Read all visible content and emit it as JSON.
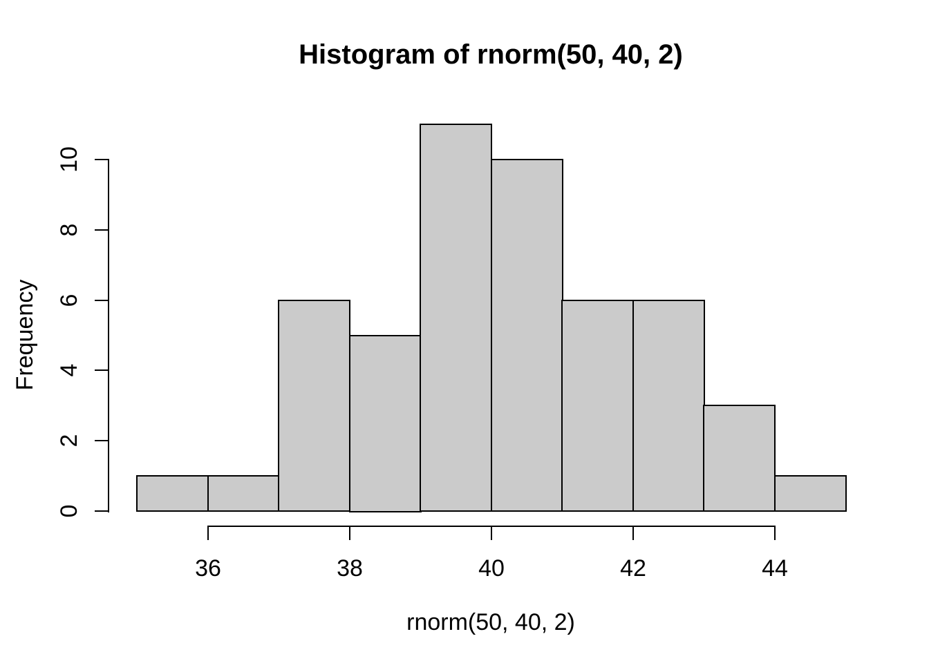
{
  "chart_data": {
    "type": "bar",
    "subtype": "histogram",
    "title": "Histogram of rnorm(50, 40, 2)",
    "xlabel": "rnorm(50, 40, 2)",
    "ylabel": "Frequency",
    "bin_edges": [
      35,
      36,
      37,
      38,
      39,
      40,
      41,
      42,
      43,
      44,
      45
    ],
    "counts": [
      1,
      1,
      6,
      5,
      11,
      10,
      6,
      6,
      3,
      1
    ],
    "x_ticks": [
      36,
      38,
      40,
      42,
      44
    ],
    "y_ticks": [
      0,
      2,
      4,
      6,
      8,
      10
    ],
    "xlim": [
      35,
      45
    ],
    "ylim": [
      0,
      11
    ],
    "grid": false,
    "legend_position": "none",
    "colors": {
      "bar_fill": "#cbcbcb",
      "bar_border": "#000000",
      "axis": "#000000",
      "text": "#000000",
      "background": "#ffffff"
    }
  }
}
